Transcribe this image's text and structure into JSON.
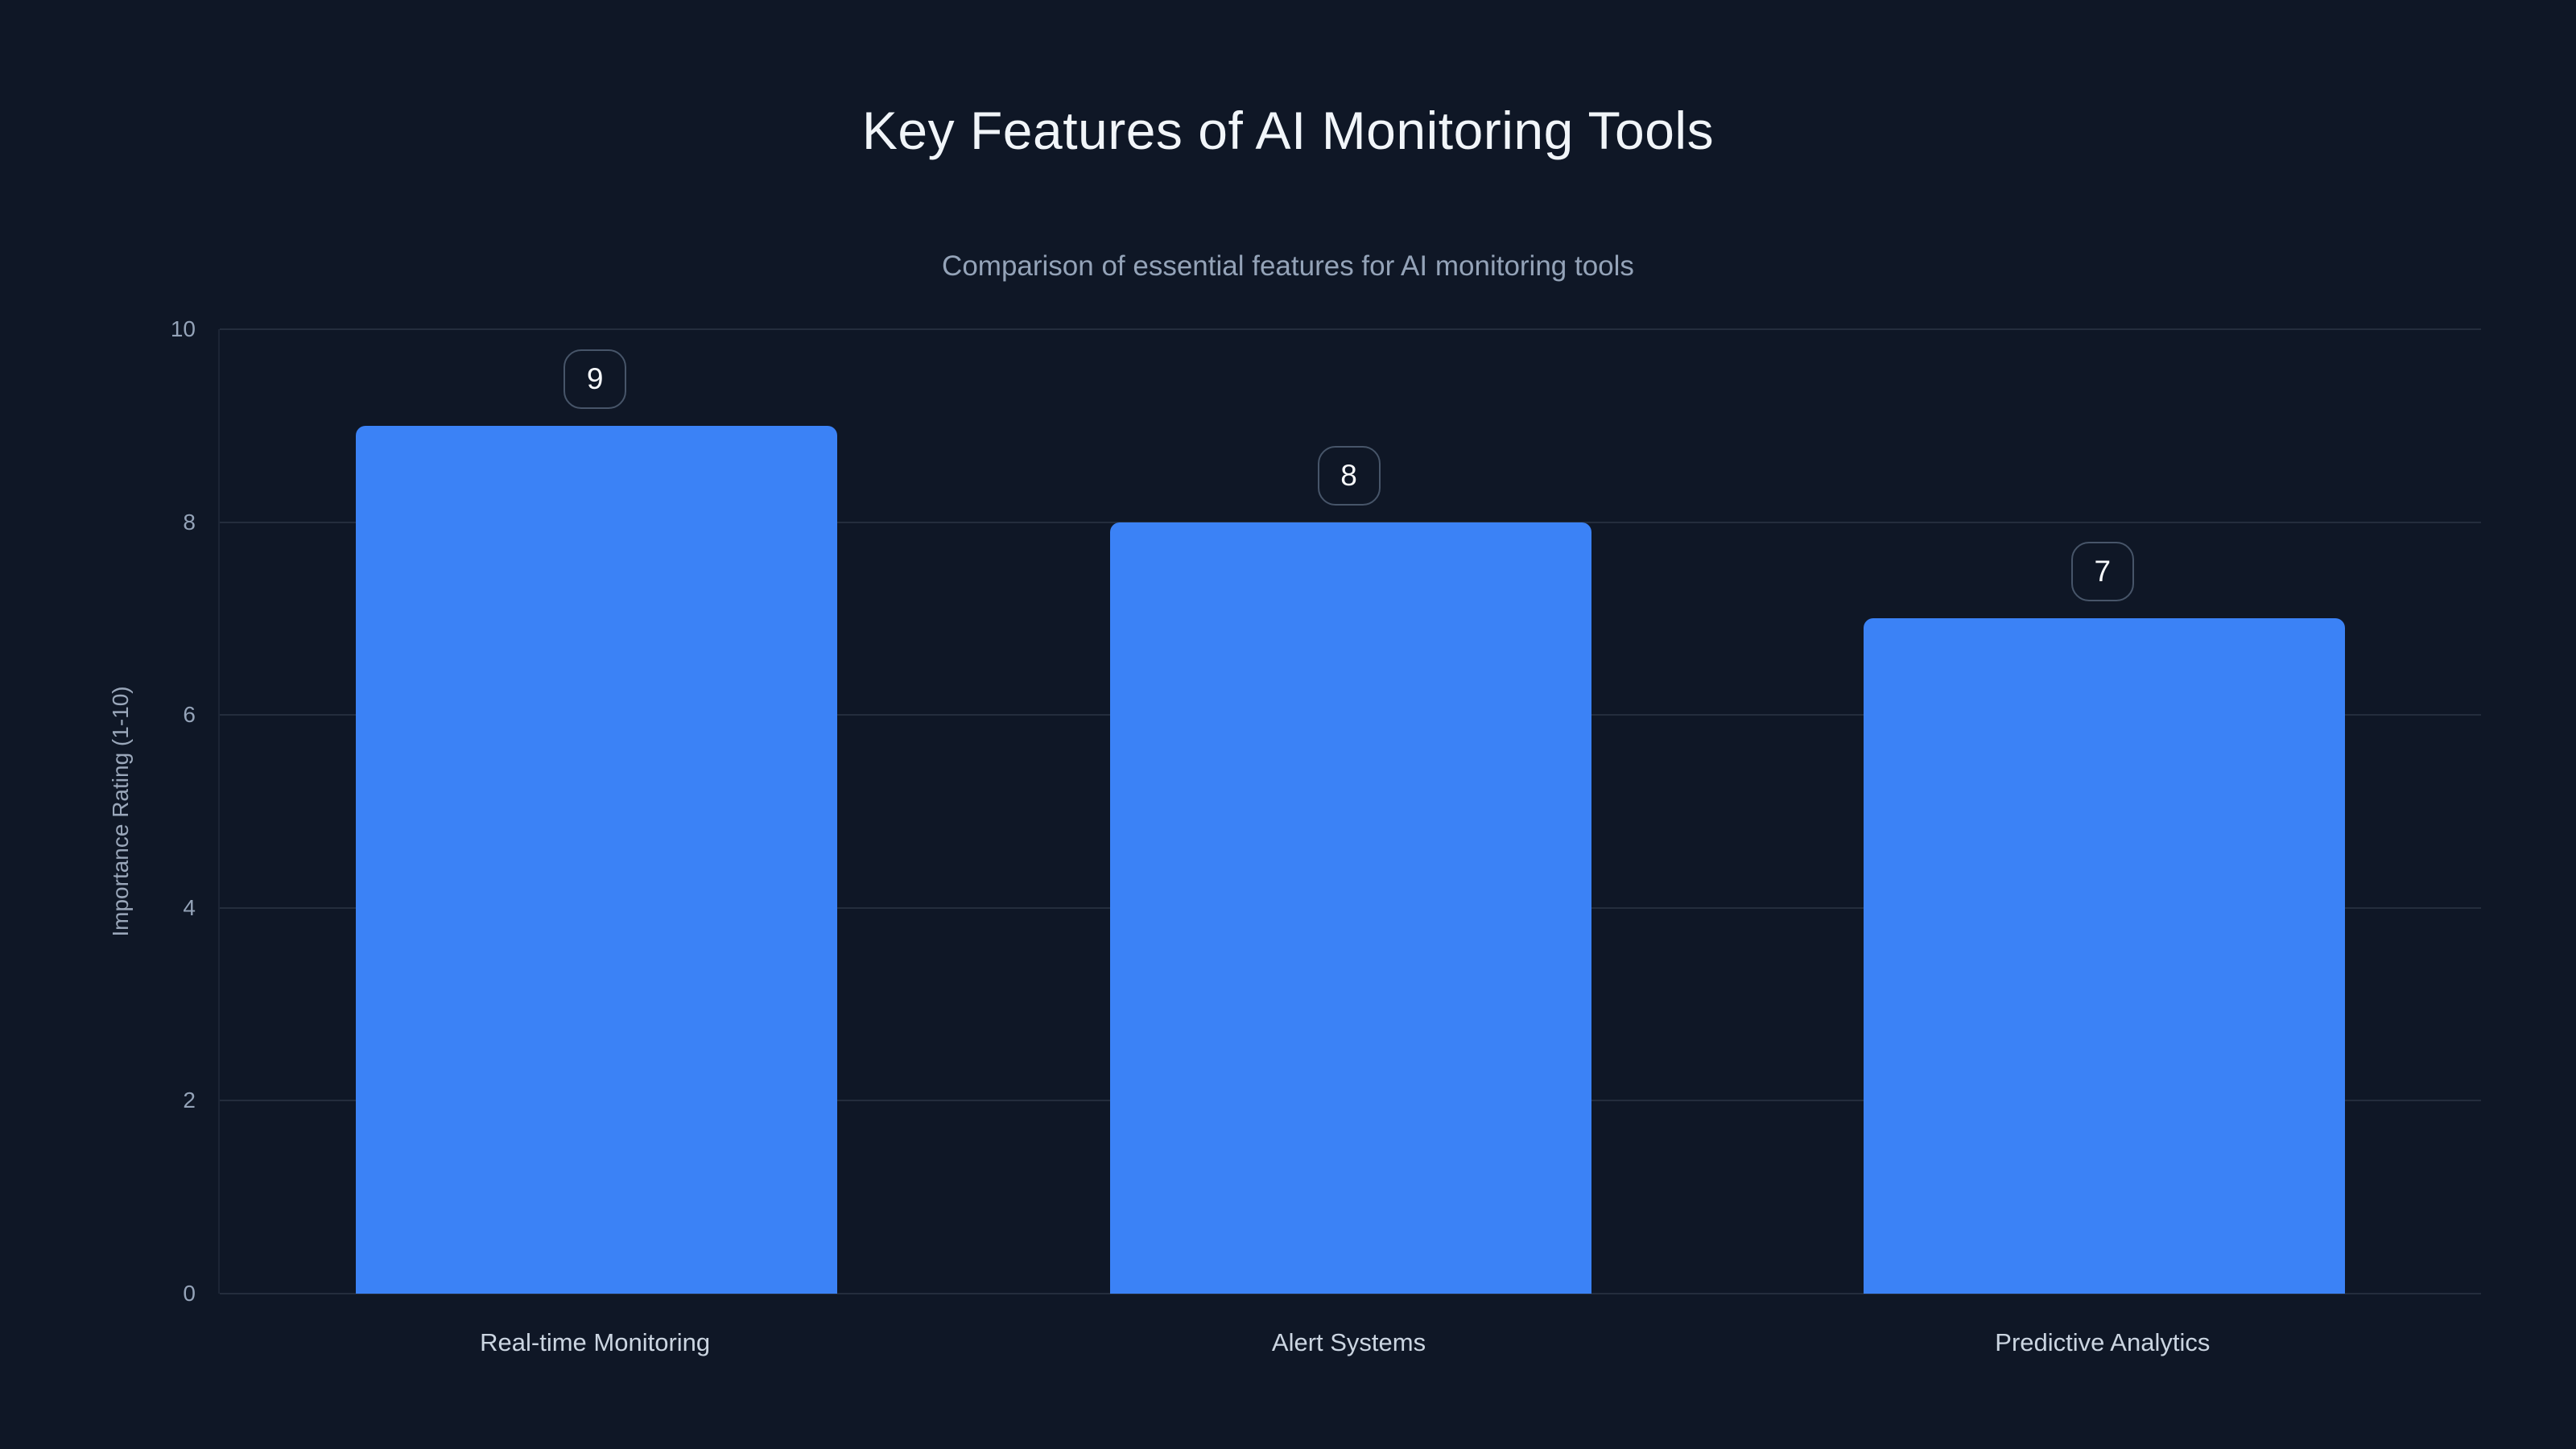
{
  "page": {
    "background_color": "#0f1726"
  },
  "chart_data": {
    "type": "bar",
    "title": "Key Features of AI Monitoring Tools",
    "subtitle": "Comparison of essential features for AI monitoring tools",
    "categories": [
      "Real-time Monitoring",
      "Alert Systems",
      "Predictive Analytics"
    ],
    "values": [
      9,
      8,
      7
    ],
    "xlabel": "",
    "ylabel": "Importance Rating (1-10)",
    "ylim": [
      0,
      10
    ],
    "yticks": [
      0,
      2,
      4,
      6,
      8,
      10
    ],
    "grid": true,
    "legend": false,
    "bar_color": "#3b82f6",
    "value_label_style": "outlined-rounded-badge"
  },
  "colors": {
    "background": "#0f1726",
    "bar": "#3b82f6",
    "title_text": "#f1f5f9",
    "subtitle_text": "#94a3b8",
    "tick_text": "#94a3b8",
    "category_text": "#cbd5e1",
    "gridline": "rgba(148,163,184,0.16)",
    "badge_border": "#475569",
    "badge_text": "#f8fafc"
  }
}
